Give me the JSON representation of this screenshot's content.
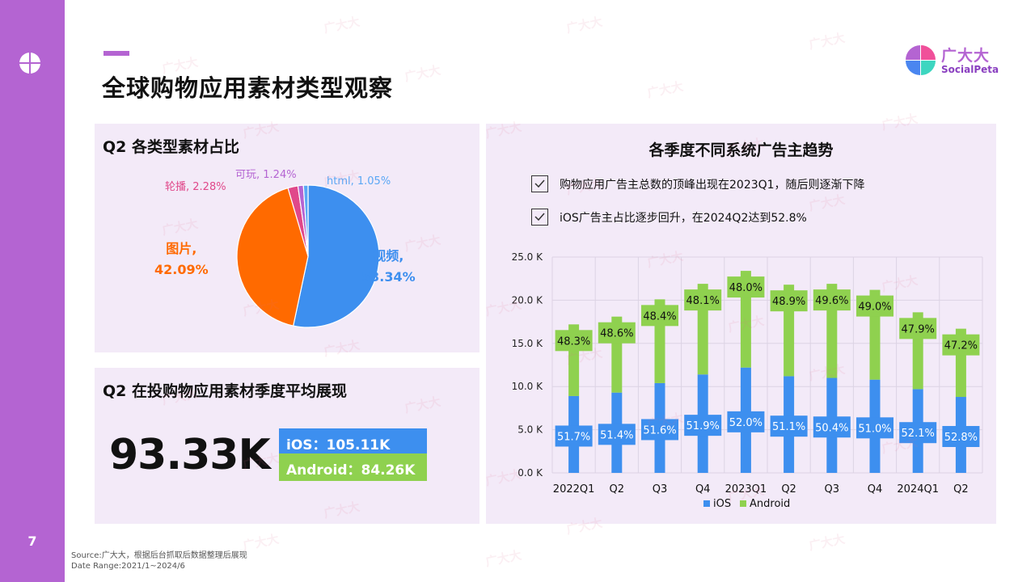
{
  "page": {
    "number": "7",
    "title": "全球购物应用素材类型观察"
  },
  "brand": {
    "name": "广大大",
    "sub": "SocialPeta"
  },
  "watermark": "广大大",
  "pie_panel": {
    "title": "Q2 各类型素材占比",
    "labels": [
      {
        "name": "视频,",
        "value": "53.34%",
        "color": "#3d8fef"
      },
      {
        "name": "图片,",
        "value": "42.09%",
        "color": "#ff6a00"
      },
      {
        "text": "轮播, 2.28%",
        "color": "#e0488a"
      },
      {
        "text": "可玩, 1.24%",
        "color": "#b464d2"
      },
      {
        "text": "html, 1.05%",
        "color": "#5aa7f5"
      }
    ]
  },
  "avg_panel": {
    "title": "Q2 在投购物应用素材季度平均展现",
    "value": "93.33K",
    "ios": "iOS：105.11K",
    "android": "Android：84.26K"
  },
  "bar_panel": {
    "title": "各季度不同系统广告主趋势",
    "notes": [
      "购物应用广告主总数的顶峰出现在2023Q1，随后则逐渐下降",
      "iOS广告主占比逐步回升，在2024Q2达到52.8%"
    ]
  },
  "footer": {
    "source": "Source:广大大，根据后台抓取后数据整理后展现",
    "range": "Date Range:2021/1~2024/6"
  },
  "colors": {
    "ios": "#3d8fef",
    "android": "#8fd14f",
    "accent": "#b464d2",
    "image": "#ff6a00"
  },
  "chart_data": [
    {
      "type": "pie",
      "title": "Q2 各类型素材占比",
      "categories": [
        "视频",
        "图片",
        "轮播",
        "可玩",
        "html"
      ],
      "values": [
        53.34,
        42.09,
        2.28,
        1.24,
        1.05
      ],
      "colors": [
        "#3d8fef",
        "#ff6a00",
        "#e0488a",
        "#b464d2",
        "#5aa7f5"
      ]
    },
    {
      "type": "bar",
      "stacked": true,
      "title": "各季度不同系统广告主趋势",
      "categories": [
        "2022Q1",
        "Q2",
        "Q3",
        "Q4",
        "2023Q1",
        "Q2",
        "Q3",
        "Q4",
        "2024Q1",
        "Q2"
      ],
      "series": [
        {
          "name": "iOS",
          "values": [
            8.9,
            9.3,
            10.4,
            11.4,
            12.2,
            11.2,
            11.0,
            10.8,
            9.7,
            8.8
          ],
          "labels": [
            "51.7%",
            "51.4%",
            "51.6%",
            "51.9%",
            "52.0%",
            "51.1%",
            "50.4%",
            "51.0%",
            "52.1%",
            "52.8%"
          ],
          "color": "#3d8fef"
        },
        {
          "name": "Android",
          "values": [
            8.3,
            8.8,
            9.7,
            10.5,
            11.2,
            10.6,
            10.9,
            10.4,
            8.9,
            7.9
          ],
          "labels": [
            "48.3%",
            "48.6%",
            "48.4%",
            "48.1%",
            "48.0%",
            "48.9%",
            "49.6%",
            "49.0%",
            "47.9%",
            "47.2%"
          ],
          "color": "#8fd14f"
        }
      ],
      "ylim": [
        0,
        25
      ],
      "yticks": [
        "0.0 K",
        "5.0 K",
        "10.0 K",
        "15.0 K",
        "20.0 K",
        "25.0 K"
      ],
      "ytick_values": [
        0,
        5,
        10,
        15,
        20,
        25
      ],
      "legend": "bottom",
      "grid": true
    }
  ]
}
